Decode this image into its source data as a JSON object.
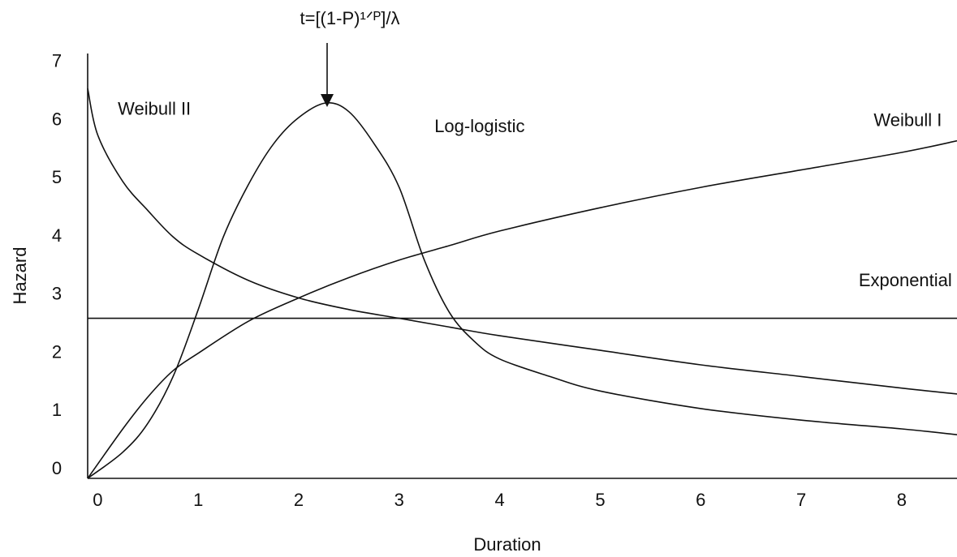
{
  "chart_data": {
    "type": "line",
    "title": "",
    "xlabel": "Duration",
    "ylabel": "Hazard",
    "xlim": [
      -0.1,
      8.55
    ],
    "ylim": [
      0,
      7.3
    ],
    "xticks": [
      0,
      1,
      2,
      3,
      4,
      5,
      6,
      7,
      8
    ],
    "yticks": [
      0,
      1,
      2,
      3,
      4,
      5,
      6,
      7
    ],
    "grid": false,
    "legend": "none",
    "annotation": {
      "text": "t=[(1-P)¹ᐟᴾ]/λ",
      "x": 2.27,
      "y": 6.45
    },
    "series": [
      {
        "name": "Weibull II",
        "x": [
          -0.1,
          0.0,
          0.25,
          0.5,
          0.75,
          1.0,
          1.5,
          2.0,
          2.5,
          3.0,
          3.5,
          4.0,
          5.0,
          6.0,
          7.0,
          8.0,
          8.55
        ],
        "y": [
          6.7,
          5.9,
          5.1,
          4.6,
          4.15,
          3.85,
          3.4,
          3.1,
          2.9,
          2.75,
          2.6,
          2.45,
          2.2,
          1.95,
          1.75,
          1.55,
          1.45
        ]
      },
      {
        "name": "Log-logistic",
        "x": [
          -0.1,
          0.25,
          0.5,
          0.75,
          1.0,
          1.25,
          1.5,
          1.75,
          2.0,
          2.27,
          2.5,
          2.75,
          3.0,
          3.25,
          3.5,
          3.75,
          4.0,
          4.5,
          5.0,
          6.0,
          7.0,
          8.0,
          8.55
        ],
        "y": [
          0.0,
          0.45,
          0.95,
          1.75,
          2.9,
          4.15,
          5.05,
          5.75,
          6.2,
          6.45,
          6.3,
          5.75,
          5.0,
          3.75,
          2.85,
          2.35,
          2.05,
          1.75,
          1.5,
          1.2,
          1.0,
          0.85,
          0.75
        ]
      },
      {
        "name": "Weibull I",
        "x": [
          -0.1,
          0.25,
          0.5,
          0.75,
          1.0,
          1.5,
          2.0,
          2.5,
          3.0,
          3.5,
          4.0,
          5.0,
          6.0,
          7.0,
          8.0,
          8.55
        ],
        "y": [
          0.0,
          0.85,
          1.4,
          1.85,
          2.15,
          2.7,
          3.1,
          3.45,
          3.75,
          4.0,
          4.25,
          4.65,
          5.0,
          5.3,
          5.6,
          5.8
        ]
      },
      {
        "name": "Exponential",
        "x": [
          -0.1,
          8.55
        ],
        "y": [
          2.75,
          2.75
        ]
      }
    ]
  }
}
